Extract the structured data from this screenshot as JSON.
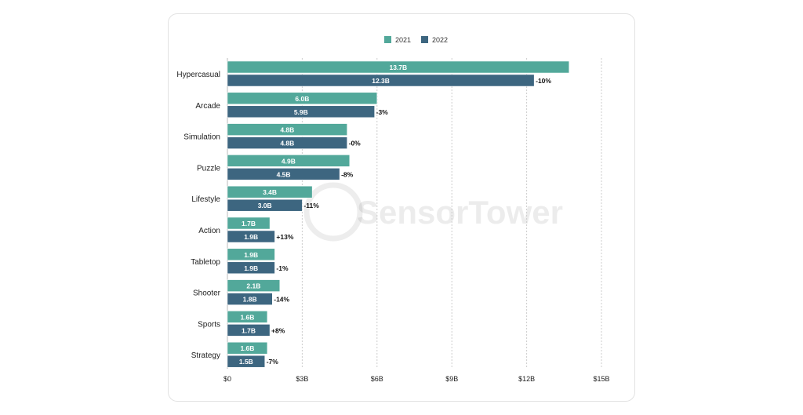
{
  "chart_data": {
    "type": "bar",
    "orientation": "horizontal",
    "categories": [
      "Hypercasual",
      "Arcade",
      "Simulation",
      "Puzzle",
      "Lifestyle",
      "Action",
      "Tabletop",
      "Shooter",
      "Sports",
      "Strategy"
    ],
    "series": [
      {
        "name": "2021",
        "color": "#52a89a",
        "values": [
          13.7,
          6.0,
          4.8,
          4.9,
          3.4,
          1.7,
          1.9,
          2.1,
          1.6,
          1.6
        ],
        "labels": [
          "13.7B",
          "6.0B",
          "4.8B",
          "4.9B",
          "3.4B",
          "1.7B",
          "1.9B",
          "2.1B",
          "1.6B",
          "1.6B"
        ]
      },
      {
        "name": "2022",
        "color": "#3d6680",
        "values": [
          12.3,
          5.9,
          4.8,
          4.5,
          3.0,
          1.9,
          1.9,
          1.8,
          1.7,
          1.5
        ],
        "labels": [
          "12.3B",
          "5.9B",
          "4.8B",
          "4.5B",
          "3.0B",
          "1.9B",
          "1.9B",
          "1.8B",
          "1.7B",
          "1.5B"
        ]
      }
    ],
    "change_labels": [
      "-10%",
      "-3%",
      "-0%",
      "-8%",
      "-11%",
      "+13%",
      "-1%",
      "-14%",
      "+8%",
      "-7%"
    ],
    "xlim": [
      0,
      15
    ],
    "xticks": [
      0,
      3,
      6,
      9,
      12,
      15
    ],
    "xtick_labels": [
      "$0",
      "$3B",
      "$6B",
      "$9B",
      "$12B",
      "$15B"
    ],
    "grid": "vertical dotted",
    "legend": "top-center",
    "watermark": "SensorTower"
  }
}
